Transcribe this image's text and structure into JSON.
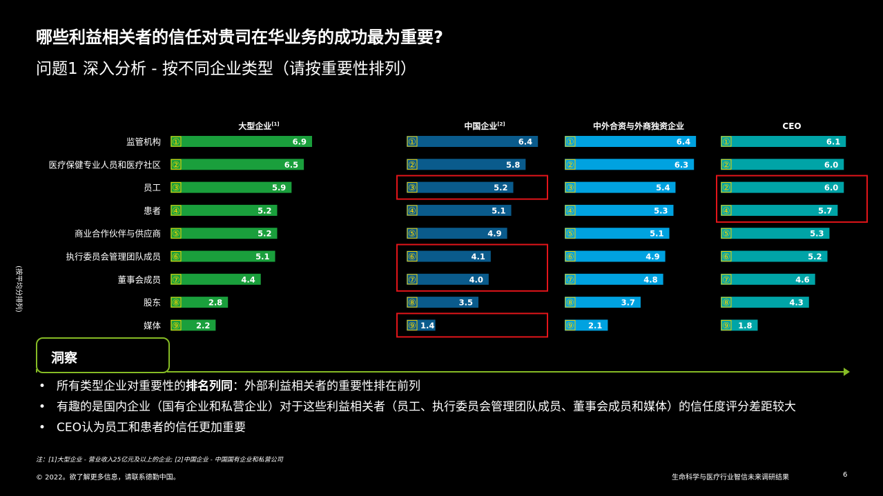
{
  "title": "哪些利益相关者的信任对贵司在华业务的成功最为重要?",
  "subtitle": "问题1 深入分析 - 按不同企业类型（请按重要性排列）",
  "chart_data": {
    "type": "bar",
    "orientation": "horizontal",
    "ylabel": "(按平均分排列)",
    "categories": [
      "监管机构",
      "医疗保健专业人员和医疗社区",
      "员工",
      "患者",
      "商业合作伙伴与供应商",
      "执行委员会管理团队成员",
      "董事会成员",
      "股东",
      "媒体"
    ],
    "xlim": [
      0,
      7
    ],
    "panels": [
      {
        "name": "大型企业",
        "sup": "[1]",
        "color": "#1a9f3c",
        "values": [
          6.9,
          6.5,
          5.9,
          5.2,
          5.2,
          5.1,
          4.4,
          2.8,
          2.2
        ],
        "labels": [
          "6.9",
          "6.5",
          "5.9",
          "5.2",
          "5.2",
          "5.1",
          "4.4",
          "2.8",
          "2.2"
        ],
        "ranks": [
          "①",
          "②",
          "③",
          "④",
          "⑤",
          "⑥",
          "⑦",
          "⑧",
          "⑨"
        ],
        "highlights": []
      },
      {
        "name": "中国企业",
        "sup": "[2]",
        "color": "#0a5b8c",
        "values": [
          6.4,
          5.8,
          5.2,
          5.1,
          4.9,
          4.1,
          4.0,
          3.5,
          1.4
        ],
        "labels": [
          "6.4",
          "5.8",
          "5.2",
          "5.1",
          "4.9",
          "4.1",
          "4.0",
          "3.5",
          "1.4"
        ],
        "ranks": [
          "①",
          "②",
          "③",
          "④",
          "⑤",
          "⑥",
          "⑦",
          "⑧",
          "⑨"
        ],
        "highlights": [
          [
            2,
            2
          ],
          [
            5,
            6
          ],
          [
            8,
            8
          ]
        ]
      },
      {
        "name": "中外合资与外商独资企业",
        "sup": "",
        "color": "#00a2e0",
        "values": [
          6.4,
          6.3,
          5.4,
          5.3,
          5.1,
          4.9,
          4.8,
          3.7,
          2.1
        ],
        "labels": [
          "6.4",
          "6.3",
          "5.4",
          "5.3",
          "5.1",
          "4.9",
          "4.8",
          "3.7",
          "2.1"
        ],
        "ranks": [
          "①",
          "②",
          "③",
          "④",
          "⑤",
          "⑥",
          "⑦",
          "⑧",
          "⑨"
        ],
        "highlights": []
      },
      {
        "name": "CEO",
        "sup": "",
        "color": "#00a4a7",
        "values": [
          6.1,
          6.0,
          6.0,
          5.7,
          5.3,
          5.2,
          4.6,
          4.3,
          1.8
        ],
        "labels": [
          "6.1",
          "6.0",
          "6.0",
          "5.7",
          "5.3",
          "5.2",
          "4.6",
          "4.3",
          "1.8"
        ],
        "ranks": [
          "①",
          "②",
          "②",
          "④",
          "⑤",
          "⑥",
          "⑦",
          "⑧",
          "⑨"
        ],
        "highlights": [
          [
            2,
            3
          ]
        ]
      }
    ],
    "highlight_color": "#e3151a",
    "rank_badge_color": "#f5d300"
  },
  "insight": {
    "label": "洞察",
    "bullets": [
      {
        "parts": [
          {
            "text": "所有类型企业对重要性的",
            "bold": false
          },
          {
            "text": "排名列同",
            "bold": true
          },
          {
            "text": "：外部利益相关者的重要性排在前列",
            "bold": false
          }
        ]
      },
      {
        "parts": [
          {
            "text": "有趣的是国内企业（国有企业和私营企业）对于这些利益相关者（员工、执行委员会管理团队成员、董事会成员和媒体）的信任度评分差距较大",
            "bold": false
          }
        ]
      },
      {
        "parts": [
          {
            "text": "CEO认为员工和患者的信任更加重要",
            "bold": false
          }
        ]
      }
    ]
  },
  "note": "注：[1]大型企业 - 营业收入25亿元及以上的企业; [2]中国企业 - 中国国有企业和私营公司",
  "footer": {
    "copyright": "© 2022。欲了解更多信息，请联系德勤中国。",
    "report": "生命科学与医疗行业智信未来调研结果",
    "page": "6"
  },
  "colors": {
    "accent": "#86bc25"
  }
}
